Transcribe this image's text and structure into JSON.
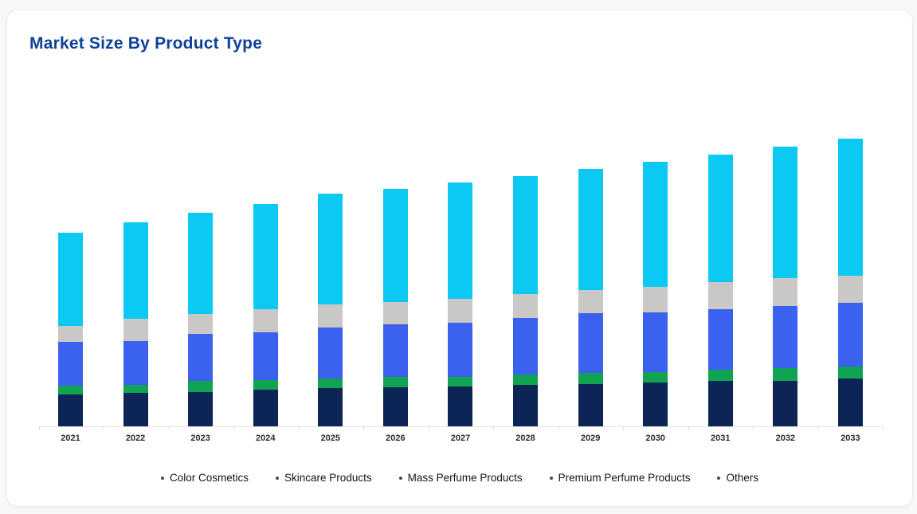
{
  "page": {
    "background": "#f8f8f8"
  },
  "card": {
    "title": "Market Size By Product Type",
    "title_color": "#0d419b"
  },
  "chart_data": {
    "type": "bar",
    "stacked": true,
    "title": "Market Size By Product Type",
    "categories": [
      "2021",
      "2022",
      "2023",
      "2024",
      "2025",
      "2026",
      "2027",
      "2028",
      "2029",
      "2030",
      "2031",
      "2032",
      "2033"
    ],
    "series": [
      {
        "name": "Color Cosmetics",
        "color": "#0d2457",
        "values": [
          41,
          43,
          44,
          47,
          49,
          50,
          51,
          53,
          54,
          56,
          58,
          58,
          61
        ]
      },
      {
        "name": "Skincare Products",
        "color": "#10a351",
        "values": [
          11,
          10,
          14,
          12,
          12,
          13,
          12,
          13,
          14,
          13,
          14,
          16,
          15
        ]
      },
      {
        "name": "Mass Perfume Products",
        "color": "#3b62ef",
        "values": [
          55,
          55,
          59,
          60,
          64,
          66,
          68,
          71,
          75,
          75,
          76,
          78,
          80
        ]
      },
      {
        "name": "Premium Perfume Products",
        "color": "#c9c8c6",
        "values": [
          20,
          28,
          25,
          29,
          29,
          28,
          30,
          30,
          29,
          32,
          34,
          35,
          34
        ]
      },
      {
        "name": "Others",
        "color": "#0bc9f2",
        "values": [
          117,
          121,
          127,
          132,
          139,
          142,
          146,
          148,
          152,
          157,
          160,
          165,
          172
        ]
      }
    ],
    "value_unit": "relative (pixel-estimated, no y-axis shown)",
    "y_axis": {
      "visible": false
    },
    "x_axis": {
      "label_color": "#2e2e2e",
      "line_color": "#e3e3e3"
    },
    "grid": false,
    "legend_position": "bottom"
  }
}
